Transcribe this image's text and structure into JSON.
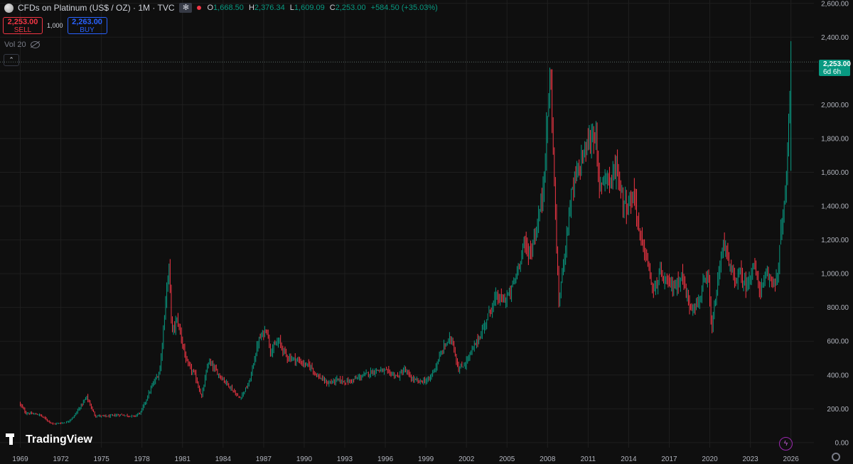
{
  "header": {
    "symbol_title": "CFDs on Platinum (US$ / OZ) · 1M · TVC",
    "ohlc": {
      "o_label": "O",
      "o_value": "1,668.50",
      "h_label": "H",
      "h_value": "2,376.34",
      "l_label": "L",
      "l_value": "1,609.09",
      "c_label": "C",
      "c_value": "2,253.00",
      "change": "+584.50 (+35.03%)"
    }
  },
  "trade": {
    "sell_price": "2,253.00",
    "sell_label": "SELL",
    "quantity": "1,000",
    "buy_price": "2,263.00",
    "buy_label": "BUY"
  },
  "indicator": {
    "label": "Vol 20"
  },
  "last_price": {
    "value": "2,253.00",
    "countdown": "6d 6h"
  },
  "branding": {
    "logo_text": "TradingView"
  },
  "colors": {
    "up": "#089981",
    "down": "#f23645",
    "background": "#0f0f0f",
    "grid": "#1f1f1f",
    "text": "#b2b5be"
  },
  "chart_data": {
    "type": "candlestick",
    "interval": "1M",
    "y_ticks": [
      0,
      200,
      400,
      600,
      800,
      1000,
      1200,
      1400,
      1600,
      1800,
      2000,
      2200,
      2400,
      2600
    ],
    "y_tick_labels": [
      "0.00",
      "200.00",
      "400.00",
      "600.00",
      "800.00",
      "1,000.00",
      "1,200.00",
      "1,400.00",
      "1,600.00",
      "1,800.00",
      "2,000.00",
      "",
      "2,400.00",
      "2,600.00"
    ],
    "ylim": [
      -30,
      2620
    ],
    "x_ticks": [
      1969,
      1972,
      1975,
      1978,
      1981,
      1984,
      1987,
      1990,
      1993,
      1996,
      1999,
      2002,
      2005,
      2008,
      2011,
      2014,
      2017,
      2020,
      2023,
      2026
    ],
    "xlim": [
      1967.5,
      2027.7
    ],
    "last_price": 2253.0,
    "price_path": [
      [
        1969.0,
        235
      ],
      [
        1969.5,
        175
      ],
      [
        1970.5,
        165
      ],
      [
        1971.5,
        110
      ],
      [
        1972.5,
        120
      ],
      [
        1973.0,
        150
      ],
      [
        1974.0,
        270
      ],
      [
        1974.6,
        160
      ],
      [
        1975.5,
        155
      ],
      [
        1976.5,
        165
      ],
      [
        1977.5,
        155
      ],
      [
        1978.0,
        180
      ],
      [
        1978.8,
        330
      ],
      [
        1979.4,
        420
      ],
      [
        1979.9,
        900
      ],
      [
        1980.1,
        1040
      ],
      [
        1980.3,
        650
      ],
      [
        1980.7,
        730
      ],
      [
        1981.4,
        470
      ],
      [
        1982.0,
        400
      ],
      [
        1982.5,
        270
      ],
      [
        1983.0,
        480
      ],
      [
        1983.8,
        400
      ],
      [
        1984.5,
        340
      ],
      [
        1985.3,
        260
      ],
      [
        1986.0,
        350
      ],
      [
        1986.7,
        600
      ],
      [
        1987.3,
        680
      ],
      [
        1987.6,
        540
      ],
      [
        1988.2,
        600
      ],
      [
        1988.8,
        510
      ],
      [
        1989.5,
        490
      ],
      [
        1990.2,
        460
      ],
      [
        1990.6,
        450
      ],
      [
        1991.0,
        400
      ],
      [
        1991.8,
        350
      ],
      [
        1992.5,
        370
      ],
      [
        1993.3,
        360
      ],
      [
        1994.0,
        380
      ],
      [
        1994.8,
        410
      ],
      [
        1995.5,
        430
      ],
      [
        1996.2,
        420
      ],
      [
        1997.0,
        390
      ],
      [
        1997.5,
        430
      ],
      [
        1998.0,
        380
      ],
      [
        1998.5,
        360
      ],
      [
        1999.3,
        370
      ],
      [
        1999.8,
        450
      ],
      [
        2000.5,
        580
      ],
      [
        2001.0,
        620
      ],
      [
        2001.5,
        430
      ],
      [
        2002.0,
        470
      ],
      [
        2002.6,
        560
      ],
      [
        2003.2,
        650
      ],
      [
        2003.8,
        780
      ],
      [
        2004.3,
        860
      ],
      [
        2004.8,
        840
      ],
      [
        2005.3,
        880
      ],
      [
        2005.8,
        1000
      ],
      [
        2006.3,
        1180
      ],
      [
        2006.8,
        1120
      ],
      [
        2007.3,
        1280
      ],
      [
        2007.7,
        1460
      ],
      [
        2008.1,
        1950
      ],
      [
        2008.3,
        2200
      ],
      [
        2008.6,
        1500
      ],
      [
        2008.9,
        820
      ],
      [
        2009.3,
        1100
      ],
      [
        2009.8,
        1450
      ],
      [
        2010.3,
        1600
      ],
      [
        2010.8,
        1720
      ],
      [
        2011.3,
        1800
      ],
      [
        2011.6,
        1850
      ],
      [
        2011.9,
        1500
      ],
      [
        2012.3,
        1600
      ],
      [
        2012.8,
        1550
      ],
      [
        2013.2,
        1650
      ],
      [
        2013.6,
        1450
      ],
      [
        2014.0,
        1400
      ],
      [
        2014.5,
        1480
      ],
      [
        2014.9,
        1220
      ],
      [
        2015.4,
        1100
      ],
      [
        2015.9,
        880
      ],
      [
        2016.4,
        1000
      ],
      [
        2016.8,
        950
      ],
      [
        2017.5,
        920
      ],
      [
        2018.0,
        990
      ],
      [
        2018.6,
        810
      ],
      [
        2019.2,
        820
      ],
      [
        2019.6,
        930
      ],
      [
        2020.0,
        960
      ],
      [
        2020.2,
        650
      ],
      [
        2020.6,
        900
      ],
      [
        2021.1,
        1200
      ],
      [
        2021.5,
        1050
      ],
      [
        2021.9,
        960
      ],
      [
        2022.3,
        1000
      ],
      [
        2022.8,
        920
      ],
      [
        2023.3,
        1060
      ],
      [
        2023.8,
        900
      ],
      [
        2024.3,
        980
      ],
      [
        2024.8,
        960
      ],
      [
        2025.1,
        980
      ],
      [
        2025.4,
        1300
      ],
      [
        2025.6,
        1400
      ],
      [
        2025.8,
        1600
      ],
      [
        2026.1,
        2253
      ]
    ]
  }
}
